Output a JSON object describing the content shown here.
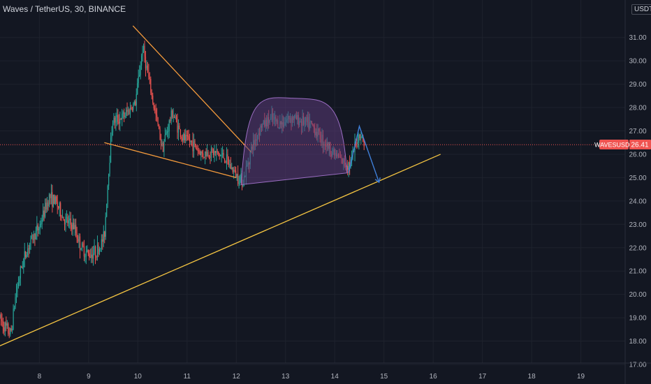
{
  "header": {
    "symbol_name": "Waves / TetherUS",
    "interval": "30",
    "exchange": "BINANCE",
    "separator": ", "
  },
  "price_axis": {
    "unit": "USDT",
    "current_symbol": "WAVESUSDT",
    "current_price_label": "26.41"
  },
  "colors": {
    "background": "#131722",
    "grid": "#1e222d",
    "axis_text": "#b2b5be",
    "up": "#26a69a",
    "down": "#ef5350",
    "trendline": "#f5c542",
    "wedge": "#f59b3c",
    "dome_fill": "#5b3a78",
    "dome_stroke": "#9c6ec4",
    "arrow": "#3f7fd8",
    "price_line": "#ef5350"
  },
  "chart_data": {
    "type": "candlestick",
    "interval_minutes": 30,
    "ylim": [
      17.0,
      32.0
    ],
    "y_ticks": [
      17,
      18,
      19,
      20,
      21,
      22,
      23,
      24,
      25,
      26,
      27,
      28,
      29,
      30,
      31
    ],
    "y_tick_labels": [
      "17.00",
      "18.00",
      "19.00",
      "20.00",
      "21.00",
      "22.00",
      "23.00",
      "24.00",
      "25.00",
      "26.00",
      "27.00",
      "28.00",
      "29.00",
      "30.00",
      "31.00"
    ],
    "xlim": [
      7.2,
      19.9
    ],
    "x_ticks": [
      8,
      9,
      10,
      11,
      12,
      13,
      14,
      15,
      16,
      17,
      18,
      19
    ],
    "x_tick_labels": [
      "8",
      "9",
      "10",
      "11",
      "12",
      "13",
      "14",
      "15",
      "16",
      "17",
      "18",
      "19"
    ],
    "last_price": 26.41,
    "price_anchors": [
      [
        7.2,
        19.0
      ],
      [
        7.3,
        18.6
      ],
      [
        7.42,
        18.3
      ],
      [
        7.52,
        20.0
      ],
      [
        7.65,
        21.3
      ],
      [
        7.8,
        22.2
      ],
      [
        8.0,
        22.9
      ],
      [
        8.2,
        24.2
      ],
      [
        8.35,
        23.9
      ],
      [
        8.5,
        23.2
      ],
      [
        8.7,
        22.9
      ],
      [
        8.85,
        22.0
      ],
      [
        9.0,
        21.7
      ],
      [
        9.2,
        21.9
      ],
      [
        9.32,
        22.5
      ],
      [
        9.38,
        24.5
      ],
      [
        9.48,
        27.4
      ],
      [
        9.7,
        27.6
      ],
      [
        9.95,
        28.2
      ],
      [
        10.1,
        30.6
      ],
      [
        10.3,
        28.3
      ],
      [
        10.5,
        26.3
      ],
      [
        10.7,
        27.8
      ],
      [
        10.9,
        26.7
      ],
      [
        11.1,
        26.5
      ],
      [
        11.3,
        26.0
      ],
      [
        11.5,
        26.1
      ],
      [
        11.75,
        25.9
      ],
      [
        12.0,
        25.1
      ],
      [
        12.15,
        24.9
      ],
      [
        12.3,
        26.2
      ],
      [
        12.5,
        27.2
      ],
      [
        12.7,
        27.5
      ],
      [
        12.9,
        27.3
      ],
      [
        13.1,
        27.6
      ],
      [
        13.35,
        27.4
      ],
      [
        13.55,
        27.2
      ],
      [
        13.8,
        26.5
      ],
      [
        14.0,
        26.0
      ],
      [
        14.2,
        25.6
      ],
      [
        14.32,
        25.6
      ],
      [
        14.45,
        26.6
      ],
      [
        14.52,
        26.9
      ],
      [
        14.6,
        26.41
      ]
    ],
    "annotations": {
      "support_trendline": [
        [
          7.2,
          17.8
        ],
        [
          16.15,
          26.0
        ]
      ],
      "wedge_upper": [
        [
          9.9,
          31.5
        ],
        [
          12.3,
          26.1
        ]
      ],
      "wedge_lower": [
        [
          9.32,
          26.5
        ],
        [
          12.0,
          25.0
        ]
      ],
      "dome": {
        "left": [
          12.1,
          24.7
        ],
        "right": [
          14.25,
          25.2
        ],
        "peak": [
          13.15,
          28.4
        ]
      },
      "projection": [
        [
          14.28,
          25.2
        ],
        [
          14.5,
          27.2
        ],
        [
          14.9,
          24.8
        ]
      ]
    }
  }
}
